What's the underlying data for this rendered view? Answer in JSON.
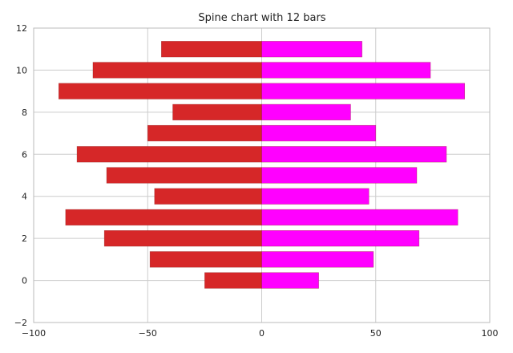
{
  "chart_data": {
    "type": "bar",
    "orientation": "horizontal",
    "title": "Spine chart with 12 bars",
    "xlabel": "",
    "ylabel": "",
    "xlim": [
      -100,
      100
    ],
    "ylim": [
      -2,
      12
    ],
    "xticks": [
      -100,
      -50,
      0,
      50,
      100
    ],
    "yticks": [
      -2,
      0,
      2,
      4,
      6,
      8,
      10,
      12
    ],
    "grid": true,
    "bar_height": 0.75,
    "y": [
      0,
      1,
      2,
      3,
      4,
      5,
      6,
      7,
      8,
      9,
      10,
      11
    ],
    "series": [
      {
        "color": "#d62728",
        "values": [
          -25,
          -49,
          -69,
          -86,
          -47,
          -68,
          -81,
          -50,
          -39,
          -89,
          -74,
          -44
        ]
      },
      {
        "color": "#ff00ff",
        "values": [
          25,
          49,
          69,
          86,
          47,
          68,
          81,
          50,
          39,
          89,
          74,
          44
        ]
      }
    ]
  }
}
